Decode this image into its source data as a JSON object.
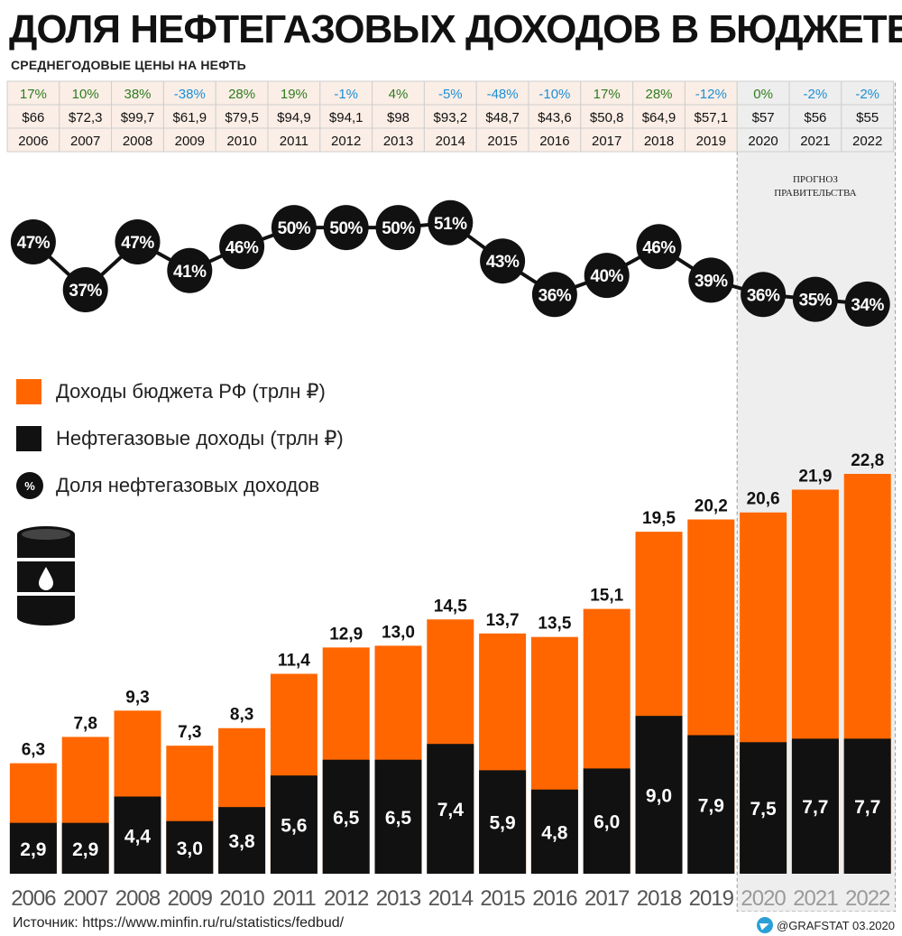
{
  "title": "ДОЛЯ НЕФТЕГАЗОВЫХ ДОХОДОВ В БЮДЖЕТЕ",
  "subtitle": "СРЕДНЕГОДОВЫЕ ЦЕНЫ НА НЕФТЬ",
  "forecast_label": [
    "ПРОГНОЗ",
    "ПРАВИТЕЛЬСТВА"
  ],
  "legend": {
    "revenue": "Доходы бюджета РФ (трлн ₽)",
    "oil_gas": "Нефтегазовые доходы (трлн ₽)",
    "share": "Доля нефтегазовых доходов",
    "share_symbol": "%"
  },
  "source": "Источник: https://www.minfin.ru/ru/statistics/fedbud/",
  "credit": "@GRAFSTAT 03.2020",
  "colors": {
    "orange": "#ff6600",
    "black": "#111111",
    "positive": "#2e7d1f",
    "negative": "#1b8fd6",
    "table_bg": "#fbeee6",
    "forecast_bg": "#eeeeee"
  },
  "icons": [
    "oil-barrel-icon",
    "telegram-icon"
  ],
  "chart_data": {
    "type": "bar",
    "categories": [
      "2006",
      "2007",
      "2008",
      "2009",
      "2010",
      "2011",
      "2012",
      "2013",
      "2014",
      "2015",
      "2016",
      "2017",
      "2018",
      "2019",
      "2020",
      "2021",
      "2022"
    ],
    "forecast_years": [
      "2020",
      "2021",
      "2022"
    ],
    "oil_price_change": [
      "17%",
      "10%",
      "38%",
      "-38%",
      "28%",
      "19%",
      "-1%",
      "4%",
      "-5%",
      "-48%",
      "-10%",
      "17%",
      "28%",
      "-12%",
      "0%",
      "-2%",
      "-2%"
    ],
    "oil_price": [
      "$66",
      "$72,3",
      "$99,7",
      "$61,9",
      "$79,5",
      "$94,9",
      "$94,1",
      "$98",
      "$93,2",
      "$48,7",
      "$43,6",
      "$50,8",
      "$64,9",
      "$57,1",
      "$57",
      "$56",
      "$55"
    ],
    "series": [
      {
        "name": "Доходы бюджета РФ (трлн ₽)",
        "values": [
          6.3,
          7.8,
          9.3,
          7.3,
          8.3,
          11.4,
          12.9,
          13.0,
          14.5,
          13.7,
          13.5,
          15.1,
          19.5,
          20.2,
          20.6,
          21.9,
          22.8
        ],
        "labels": [
          "6,3",
          "7,8",
          "9,3",
          "7,3",
          "8,3",
          "11,4",
          "12,9",
          "13,0",
          "14,5",
          "13,7",
          "13,5",
          "15,1",
          "19,5",
          "20,2",
          "20,6",
          "21,9",
          "22,8"
        ]
      },
      {
        "name": "Нефтегазовые доходы (трлн ₽)",
        "values": [
          2.9,
          2.9,
          4.4,
          3.0,
          3.8,
          5.6,
          6.5,
          6.5,
          7.4,
          5.9,
          4.8,
          6.0,
          9.0,
          7.9,
          7.5,
          7.7,
          7.7
        ],
        "labels": [
          "2,9",
          "2,9",
          "4,4",
          "3,0",
          "3,8",
          "5,6",
          "6,5",
          "6,5",
          "7,4",
          "5,9",
          "4,8",
          "6,0",
          "9,0",
          "7,9",
          "7,5",
          "7,7",
          "7,7"
        ]
      },
      {
        "name": "Доля нефтегазовых доходов",
        "values": [
          47,
          37,
          47,
          41,
          46,
          50,
          50,
          50,
          51,
          43,
          36,
          40,
          46,
          39,
          36,
          35,
          34
        ],
        "labels": [
          "47%",
          "37%",
          "47%",
          "41%",
          "46%",
          "50%",
          "50%",
          "50%",
          "51%",
          "43%",
          "36%",
          "40%",
          "46%",
          "39%",
          "36%",
          "35%",
          "34%"
        ]
      }
    ],
    "ylim": [
      0,
      25
    ]
  }
}
